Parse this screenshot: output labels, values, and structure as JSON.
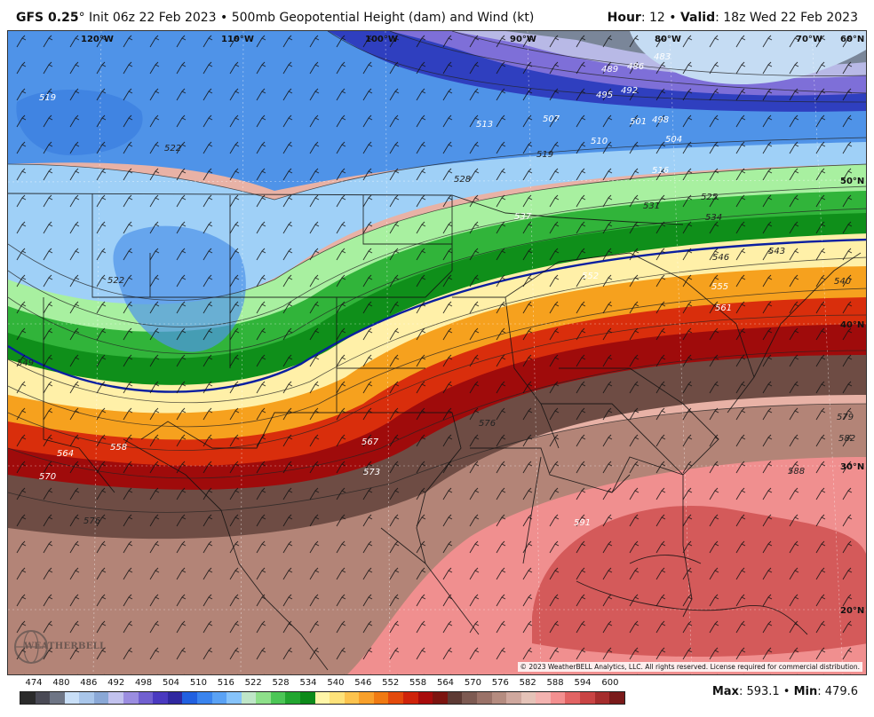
{
  "header": {
    "model": "GFS 0.25",
    "degree": "°",
    "init": " Init 06z 22 Feb 2023 • 500mb Geopotential Height (dam) and Wind (kt)",
    "hour_label": "Hour",
    "hour_value": ": 12 • ",
    "valid_label": "Valid",
    "valid_value": ": 18z Wed 22 Feb 2023"
  },
  "map": {
    "longitude_labels": [
      "120°W",
      "110°W",
      "100°W",
      "90°W",
      "80°W",
      "70°W",
      "60°N"
    ],
    "latitude_labels": [
      "50°N",
      "40°N",
      "30°N",
      "20°N"
    ],
    "contour_labels": [
      "519",
      "522",
      "522",
      "528",
      "537",
      "513",
      "507",
      "510",
      "516",
      "504",
      "501",
      "498",
      "495",
      "492",
      "489",
      "486",
      "483",
      "531",
      "534",
      "525",
      "519",
      "546",
      "543",
      "549",
      "552",
      "555",
      "561",
      "540",
      "564",
      "558",
      "567",
      "570",
      "573",
      "576",
      "579",
      "582",
      "588",
      "591",
      "576"
    ],
    "bands": [
      {
        "level": "474-489",
        "color": "#7a8699"
      },
      {
        "level": "492",
        "color": "#b8b9e6"
      },
      {
        "level": "495-504",
        "color": "#7e6fd8"
      },
      {
        "level": "507-513",
        "color": "#2f3fbf"
      },
      {
        "level": "516-522",
        "color": "#4f93e8"
      },
      {
        "level": "522-528",
        "color": "#9fd0f7"
      },
      {
        "level": "528-531",
        "color": "#a8f0a0"
      },
      {
        "level": "531-540",
        "color": "#31b43a"
      },
      {
        "level": "540",
        "color": "#0f8f1a"
      },
      {
        "level": "543-549",
        "color": "#fff0a8"
      },
      {
        "level": "552-558",
        "color": "#f6a11e"
      },
      {
        "level": "561-564",
        "color": "#d92e0c"
      },
      {
        "level": "567",
        "color": "#9f0b0b"
      },
      {
        "level": "570-576",
        "color": "#6e4c44"
      },
      {
        "level": "579-585",
        "color": "#b38477"
      },
      {
        "level": "588",
        "color": "#e8b2a6"
      },
      {
        "level": "591-594",
        "color": "#f08f8f"
      },
      {
        "level": "597",
        "color": "#d45a5a"
      }
    ],
    "logo_text": "WEATHERBELL",
    "copyright": "© 2023 WeatherBELL Analytics, LLC. All rights reserved. License required for commercial distribution."
  },
  "legend": {
    "labels": [
      "474",
      "480",
      "486",
      "492",
      "498",
      "504",
      "510",
      "516",
      "522",
      "528",
      "534",
      "540",
      "546",
      "552",
      "558",
      "564",
      "570",
      "576",
      "582",
      "588",
      "594",
      "600"
    ],
    "colors": [
      "#2b2b2b",
      "#4a4a55",
      "#6e7585",
      "#c9dff7",
      "#a9c6ea",
      "#8aa8d6",
      "#c2c2ee",
      "#9b8de0",
      "#7160d0",
      "#4a39c0",
      "#3028a0",
      "#2160e0",
      "#3a84ee",
      "#5aa2f5",
      "#86c3fa",
      "#bfe6c8",
      "#8ee08a",
      "#4cc656",
      "#22a630",
      "#0d8a1a",
      "#fff6a8",
      "#fde27a",
      "#fcc34e",
      "#f8a02b",
      "#f07a12",
      "#e34a0c",
      "#cf230a",
      "#a80c0c",
      "#7c1410",
      "#5d3a34",
      "#7d5a52",
      "#9a7268",
      "#b58c80",
      "#cfa89e",
      "#e5c3b8",
      "#f3b3b0",
      "#f39090",
      "#e26464",
      "#c94444",
      "#a52d2d",
      "#7a1a1a"
    ]
  },
  "stats": {
    "max_label": "Max",
    "max_value": ": 593.1 • ",
    "min_label": "Min",
    "min_value": ": 479.6"
  }
}
